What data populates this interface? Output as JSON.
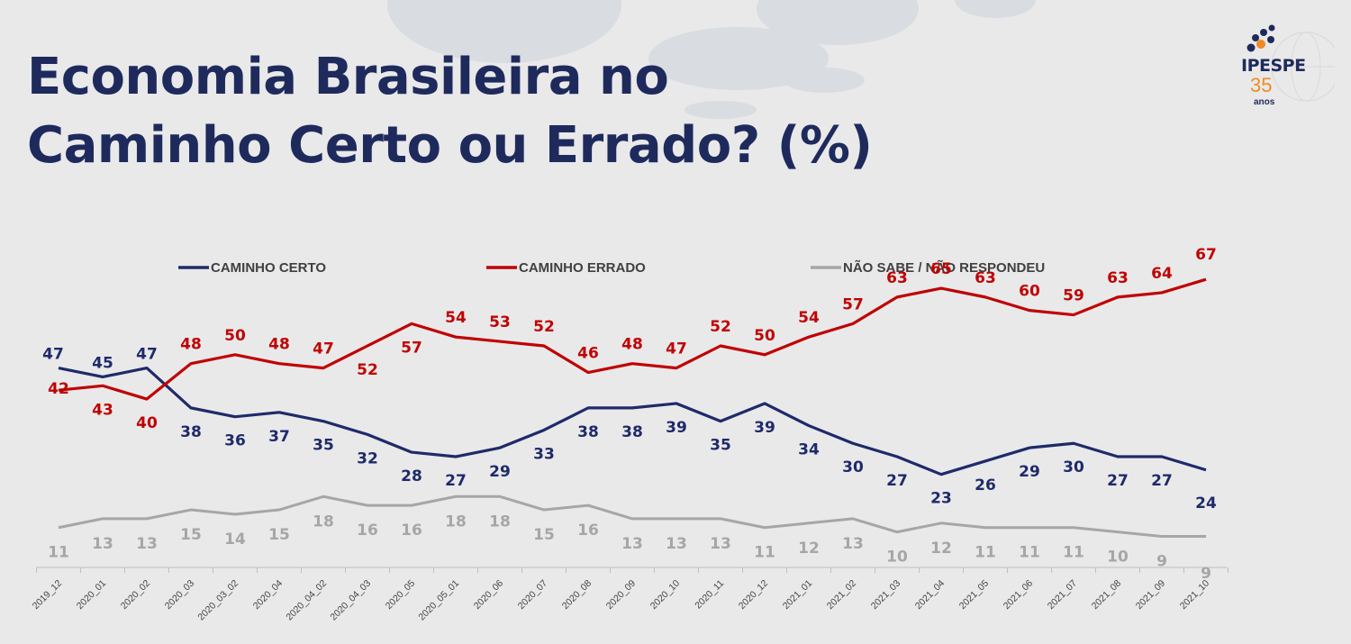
{
  "header": {
    "title_line1": "Economia Brasileira no",
    "title_line2": "Caminho Certo ou Errado? (%)"
  },
  "logo": {
    "name": "IPESPE",
    "number": "35",
    "subtitle": "anos",
    "colors": {
      "navy": "#1f2a5c",
      "orange": "#f08a24"
    }
  },
  "chart_data": {
    "type": "line",
    "title": "Economia Brasileira no Caminho Certo ou Errado? (%)",
    "xlabel": "",
    "ylabel": "",
    "ylim": [
      0,
      80
    ],
    "grid": false,
    "legend_position": "top",
    "categories": [
      "2019_12",
      "2020_01",
      "2020_02",
      "2020_03",
      "2020_03_02",
      "2020_04",
      "2020_04_02",
      "2020_04_03",
      "2020_05",
      "2020_05_01",
      "2020_06",
      "2020_07",
      "2020_08",
      "2020_09",
      "2020_10",
      "2020_11",
      "2020_12",
      "2021_01",
      "2021_02",
      "2021_03",
      "2021_04",
      "2021_05",
      "2021_06",
      "2021_07",
      "2021_08",
      "2021_09",
      "2021_10"
    ],
    "series": [
      {
        "name": "CAMINHO CERTO",
        "color": "#1f2a6a",
        "values": [
          47,
          45,
          47,
          38,
          36,
          37,
          35,
          32,
          28,
          27,
          29,
          33,
          38,
          38,
          39,
          35,
          39,
          34,
          30,
          27,
          23,
          26,
          29,
          30,
          27,
          27,
          24
        ]
      },
      {
        "name": "CAMINHO ERRADO",
        "color": "#c00000",
        "values": [
          42,
          43,
          40,
          48,
          50,
          48,
          47,
          52,
          57,
          54,
          53,
          52,
          46,
          48,
          47,
          52,
          50,
          54,
          57,
          63,
          65,
          63,
          60,
          59,
          63,
          64,
          67
        ]
      },
      {
        "name": "NÃO SABE / NÃO RESPONDEU",
        "color": "#a6a6a6",
        "values": [
          11,
          13,
          13,
          15,
          14,
          15,
          18,
          16,
          16,
          18,
          18,
          15,
          16,
          13,
          13,
          13,
          11,
          12,
          13,
          10,
          12,
          11,
          11,
          11,
          10,
          9,
          9
        ]
      }
    ]
  }
}
